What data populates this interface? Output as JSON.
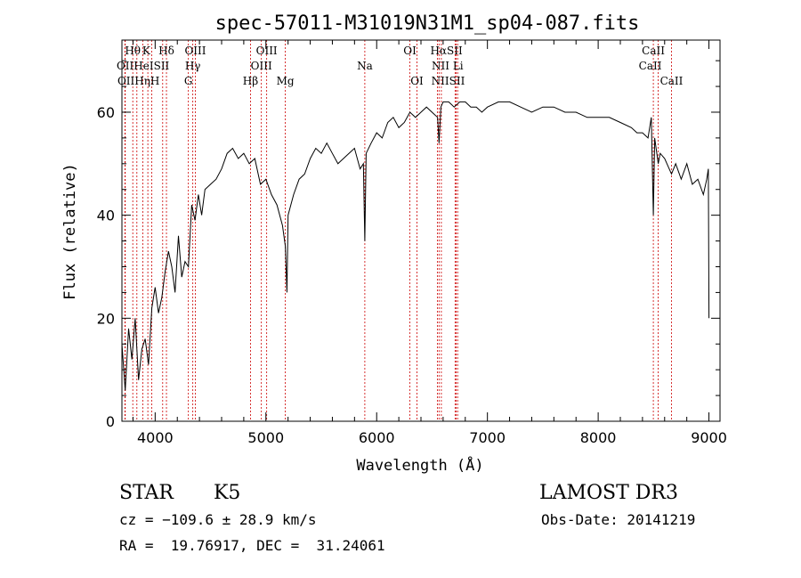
{
  "chart_data": {
    "type": "line",
    "title": "spec-57011-M31019N31M1_sp04-087.fits",
    "xlabel": "Wavelength (Å)",
    "ylabel": "Flux (relative)",
    "xlim": [
      3700,
      9100
    ],
    "ylim": [
      0,
      74
    ],
    "xticks": [
      4000,
      5000,
      6000,
      7000,
      8000,
      9000
    ],
    "yticks": [
      0,
      20,
      40,
      60
    ],
    "series": [
      {
        "name": "spectrum",
        "x": [
          3700,
          3730,
          3760,
          3790,
          3820,
          3850,
          3880,
          3910,
          3940,
          3970,
          4000,
          4030,
          4060,
          4090,
          4120,
          4150,
          4180,
          4210,
          4240,
          4270,
          4300,
          4330,
          4360,
          4390,
          4420,
          4450,
          4500,
          4550,
          4600,
          4650,
          4700,
          4750,
          4800,
          4850,
          4900,
          4950,
          5000,
          5050,
          5100,
          5150,
          5175,
          5190,
          5200,
          5250,
          5300,
          5350,
          5400,
          5450,
          5500,
          5550,
          5600,
          5650,
          5700,
          5750,
          5800,
          5850,
          5880,
          5893,
          5905,
          5950,
          6000,
          6050,
          6100,
          6150,
          6200,
          6250,
          6300,
          6350,
          6400,
          6450,
          6500,
          6550,
          6563,
          6580,
          6600,
          6650,
          6700,
          6750,
          6800,
          6850,
          6900,
          6950,
          7000,
          7100,
          7200,
          7300,
          7400,
          7500,
          7600,
          7700,
          7800,
          7900,
          8000,
          8100,
          8200,
          8300,
          8350,
          8400,
          8450,
          8480,
          8498,
          8510,
          8542,
          8560,
          8600,
          8662,
          8700,
          8750,
          8800,
          8850,
          8900,
          8950,
          8980,
          8995,
          9000
        ],
        "values": [
          15,
          6,
          18,
          12,
          20,
          8,
          14,
          16,
          11,
          22,
          26,
          21,
          24,
          29,
          33,
          30,
          25,
          36,
          28,
          31,
          30,
          42,
          39,
          44,
          40,
          45,
          46,
          47,
          49,
          52,
          53,
          51,
          52,
          50,
          51,
          46,
          47,
          44,
          42,
          38,
          34,
          25,
          40,
          44,
          47,
          48,
          51,
          53,
          52,
          54,
          52,
          50,
          51,
          52,
          53,
          49,
          50,
          35,
          52,
          54,
          56,
          55,
          58,
          59,
          57,
          58,
          60,
          59,
          60,
          61,
          60,
          59,
          54,
          61,
          62,
          62,
          61,
          62,
          62,
          61,
          61,
          60,
          61,
          62,
          62,
          61,
          60,
          61,
          61,
          60,
          60,
          59,
          59,
          59,
          58,
          57,
          56,
          56,
          55,
          59,
          40,
          55,
          50,
          52,
          51,
          48,
          50,
          47,
          50,
          46,
          47,
          44,
          47,
          49,
          20
        ]
      }
    ],
    "line_markers": [
      {
        "name": "Hθ",
        "wavelength": 3798
      },
      {
        "name": "Hη",
        "wavelength": 3835
      },
      {
        "name": "OII",
        "wavelength": 3727
      },
      {
        "name": "OII",
        "wavelength": 3730
      },
      {
        "name": "HeI",
        "wavelength": 3889
      },
      {
        "name": "K",
        "wavelength": 3934
      },
      {
        "name": "H",
        "wavelength": 3969
      },
      {
        "name": "SII",
        "wavelength": 4068
      },
      {
        "name": "Hδ",
        "wavelength": 4102
      },
      {
        "name": "G",
        "wavelength": 4300
      },
      {
        "name": "Hγ",
        "wavelength": 4340
      },
      {
        "name": "OIII",
        "wavelength": 4363
      },
      {
        "name": "Hβ",
        "wavelength": 4861
      },
      {
        "name": "OIII",
        "wavelength": 4959
      },
      {
        "name": "OIII",
        "wavelength": 5007
      },
      {
        "name": "Mg",
        "wavelength": 5175
      },
      {
        "name": "Na",
        "wavelength": 5893
      },
      {
        "name": "OI",
        "wavelength": 6300
      },
      {
        "name": "OI",
        "wavelength": 6364
      },
      {
        "name": "NII",
        "wavelength": 6548
      },
      {
        "name": "Hα",
        "wavelength": 6563
      },
      {
        "name": "NII",
        "wavelength": 6584
      },
      {
        "name": "Li",
        "wavelength": 6708
      },
      {
        "name": "SII",
        "wavelength": 6717
      },
      {
        "name": "SII",
        "wavelength": 6731
      },
      {
        "name": "CaII",
        "wavelength": 8498
      },
      {
        "name": "CaII",
        "wavelength": 8542
      },
      {
        "name": "CaII",
        "wavelength": 8662
      }
    ]
  },
  "labels": [
    {
      "text": "Hθ",
      "wl": 3798,
      "row": 0
    },
    {
      "text": "K",
      "wl": 3920,
      "row": 0
    },
    {
      "text": "Hδ",
      "wl": 4102,
      "row": 0
    },
    {
      "text": "OIII",
      "wl": 4363,
      "row": 0
    },
    {
      "text": "OIII",
      "wl": 5007,
      "row": 0
    },
    {
      "text": "OI",
      "wl": 6300,
      "row": 0
    },
    {
      "text": "HαSII",
      "wl": 6630,
      "row": 0
    },
    {
      "text": "CaII",
      "wl": 8498,
      "row": 0
    },
    {
      "text": "OIIHeISII",
      "wl": 3890,
      "row": 1
    },
    {
      "text": "Hγ",
      "wl": 4340,
      "row": 1
    },
    {
      "text": "OIII",
      "wl": 4959,
      "row": 1
    },
    {
      "text": "Na",
      "wl": 5893,
      "row": 1
    },
    {
      "text": "NII Li",
      "wl": 6640,
      "row": 1
    },
    {
      "text": "CaII",
      "wl": 8470,
      "row": 1
    },
    {
      "text": "OIIHηH",
      "wl": 3850,
      "row": 2
    },
    {
      "text": "G",
      "wl": 4300,
      "row": 2
    },
    {
      "text": "Hβ",
      "wl": 4861,
      "row": 2
    },
    {
      "text": "Mg",
      "wl": 5175,
      "row": 2
    },
    {
      "text": "OI",
      "wl": 6364,
      "row": 2
    },
    {
      "text": "NIISII",
      "wl": 6645,
      "row": 2
    },
    {
      "text": "CaII",
      "wl": 8662,
      "row": 2
    }
  ],
  "info": {
    "class": "STAR",
    "subclass": "K5",
    "survey": "LAMOST DR3",
    "cz": "cz = −109.6 ± 28.9 km/s",
    "obs_date": "Obs-Date: 20141219",
    "radec": "RA =  19.76917, DEC =  31.24061"
  },
  "colors": {
    "line": "#000000",
    "marker": "#cc0000"
  }
}
